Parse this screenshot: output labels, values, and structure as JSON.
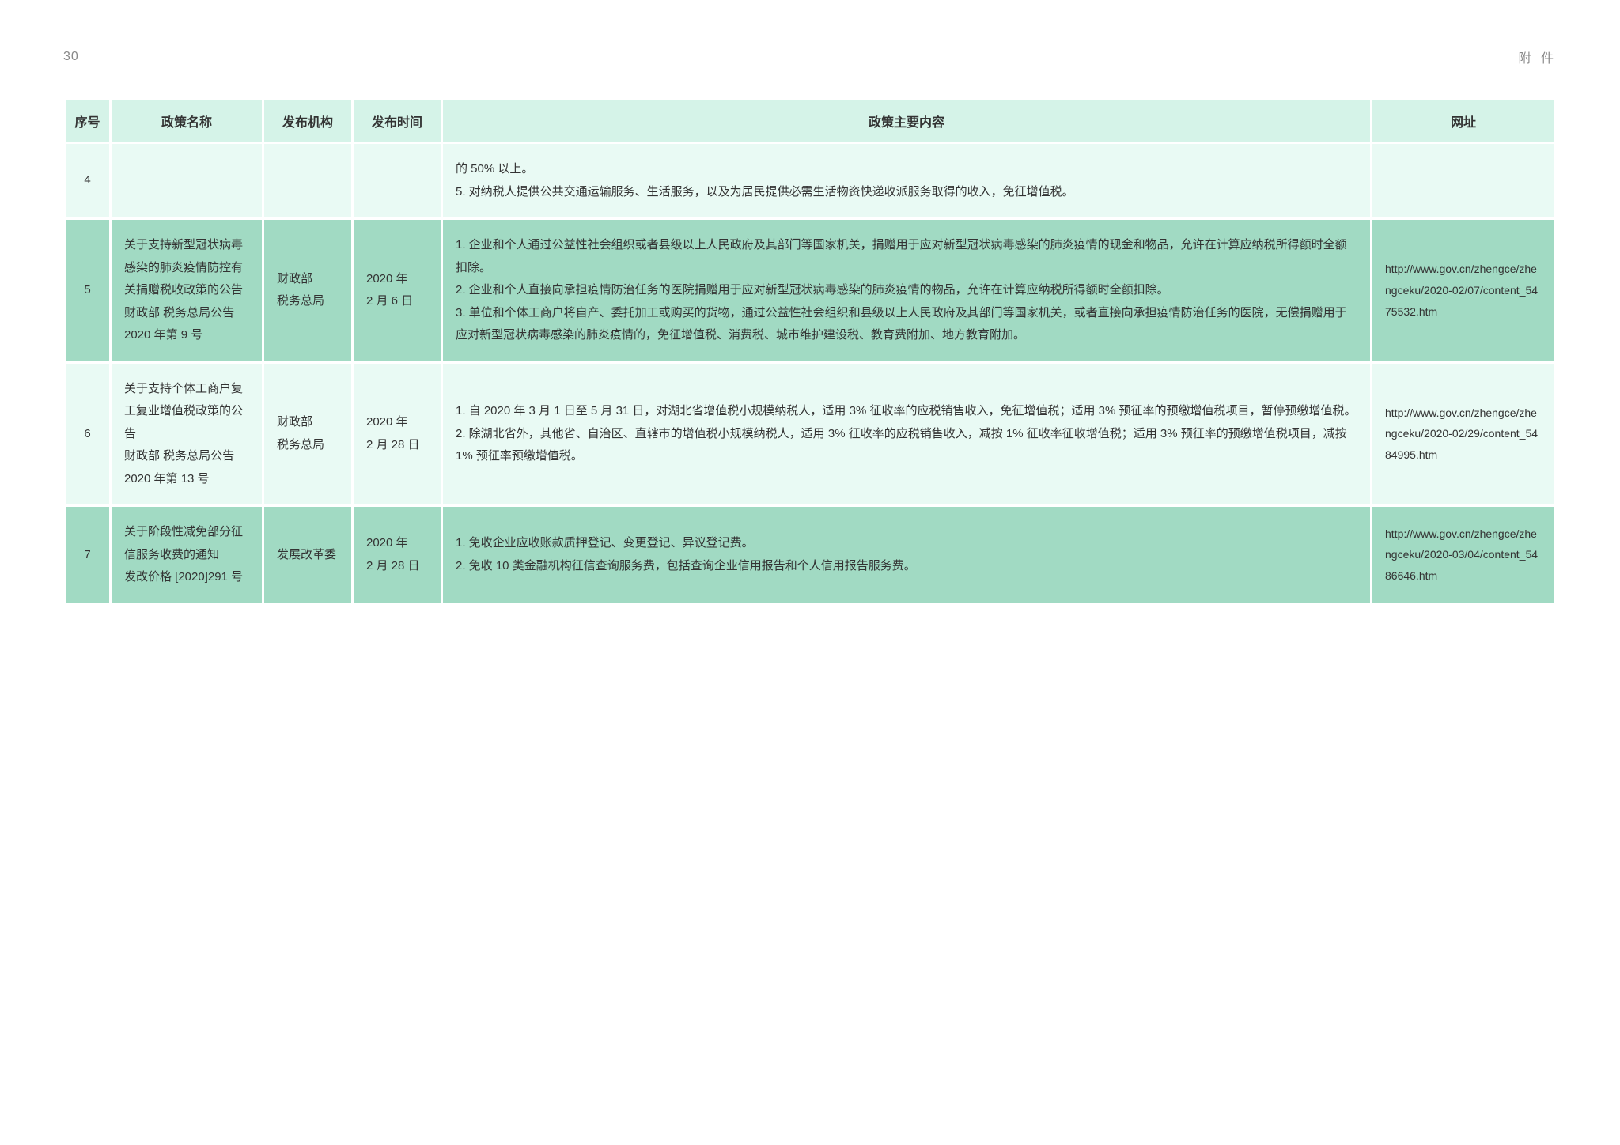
{
  "page_number": "30",
  "page_label": "附 件",
  "columns": [
    "序号",
    "政策名称",
    "发布机构",
    "发布时间",
    "政策主要内容",
    "网址"
  ],
  "rows": [
    {
      "seq": "4",
      "name": "",
      "agency": "",
      "date": "",
      "content": "的 50% 以上。\n5. 对纳税人提供公共交通运输服务、生活服务，以及为居民提供必需生活物资快递收派服务取得的收入，免征增值税。",
      "url": "",
      "style": "light"
    },
    {
      "seq": "5",
      "name": "关于支持新型冠状病毒感染的肺炎疫情防控有关捐赠税收政策的公告\n财政部 税务总局公告 2020 年第 9 号",
      "agency": "财政部\n税务总局",
      "date": "2020 年\n2 月 6 日",
      "content": "1. 企业和个人通过公益性社会组织或者县级以上人民政府及其部门等国家机关，捐赠用于应对新型冠状病毒感染的肺炎疫情的现金和物品，允许在计算应纳税所得额时全额扣除。\n2. 企业和个人直接向承担疫情防治任务的医院捐赠用于应对新型冠状病毒感染的肺炎疫情的物品，允许在计算应纳税所得额时全额扣除。\n3. 单位和个体工商户将自产、委托加工或购买的货物，通过公益性社会组织和县级以上人民政府及其部门等国家机关，或者直接向承担疫情防治任务的医院，无偿捐赠用于应对新型冠状病毒感染的肺炎疫情的，免征增值税、消费税、城市维护建设税、教育费附加、地方教育附加。",
      "url": "http://www.gov.cn/zhengce/zhengceku/2020-02/07/content_5475532.htm",
      "style": "dark"
    },
    {
      "seq": "6",
      "name": "关于支持个体工商户复工复业增值税政策的公告\n财政部 税务总局公告 2020 年第 13 号",
      "agency": "财政部\n税务总局",
      "date": "2020 年\n2 月 28 日",
      "content": "1. 自 2020 年 3 月 1 日至 5 月 31 日，对湖北省增值税小规模纳税人，适用 3% 征收率的应税销售收入，免征增值税；适用 3% 预征率的预缴增值税项目，暂停预缴增值税。\n2. 除湖北省外，其他省、自治区、直辖市的增值税小规模纳税人，适用 3% 征收率的应税销售收入，减按 1% 征收率征收增值税；适用 3% 预征率的预缴增值税项目，减按 1% 预征率预缴增值税。",
      "url": "http://www.gov.cn/zhengce/zhengceku/2020-02/29/content_5484995.htm",
      "style": "light"
    },
    {
      "seq": "7",
      "name": "关于阶段性减免部分征信服务收费的通知\n发改价格 [2020]291 号",
      "agency": "发展改革委",
      "date": "2020 年\n2 月 28 日",
      "content": "1. 免收企业应收账款质押登记、变更登记、异议登记费。\n2. 免收 10 类金融机构征信查询服务费，包括查询企业信用报告和个人信用报告服务费。",
      "url": "http://www.gov.cn/zhengce/zhengceku/2020-03/04/content_5486646.htm",
      "style": "dark"
    }
  ],
  "colors": {
    "header_bg": "#d5f3e8",
    "row_light_bg": "#e9faf4",
    "row_dark_bg": "#a1dac3",
    "text": "#333333",
    "page_meta": "#888888"
  },
  "column_widths": {
    "seq": "55px",
    "name": "190px",
    "agency": "110px",
    "date": "110px",
    "url": "230px"
  }
}
